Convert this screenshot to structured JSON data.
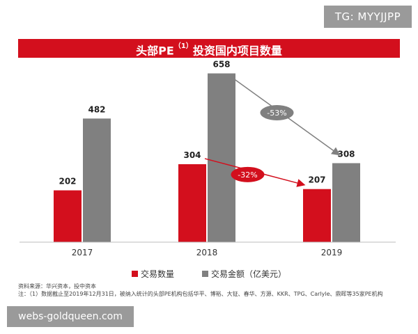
{
  "watermark_top": "TG: MYYJJPP",
  "watermark_bottom": "webs-goldqueen.com",
  "title": {
    "main": "头部PE",
    "sup": "（1）",
    "rest": "投资国内项目数量"
  },
  "chart_data": {
    "type": "bar",
    "categories": [
      "2017",
      "2018",
      "2019"
    ],
    "series": [
      {
        "name": "交易数量",
        "values": [
          202,
          304,
          207
        ],
        "color": "#d30f1d"
      },
      {
        "name": "交易金额（亿美元）",
        "values": [
          482,
          658,
          308
        ],
        "color": "#808080"
      }
    ],
    "ylim": [
      0,
      700
    ],
    "annotations": [
      {
        "label": "-32%",
        "series": "交易数量",
        "from": "2018",
        "to": "2019",
        "color": "#d30f1d"
      },
      {
        "label": "-53%",
        "series": "交易金额（亿美元）",
        "from": "2018",
        "to": "2019",
        "color": "#808080"
      }
    ]
  },
  "notes": {
    "source": "资料来源：华兴资本，投中资本",
    "footnote": "注：（1）数据截止至2019年12月31日，被纳入统计的头部PE机构包括华平、博裕、大钲、春华、方源、KKR、TPG、Carlyle、鼎晖等35家PE机构"
  }
}
